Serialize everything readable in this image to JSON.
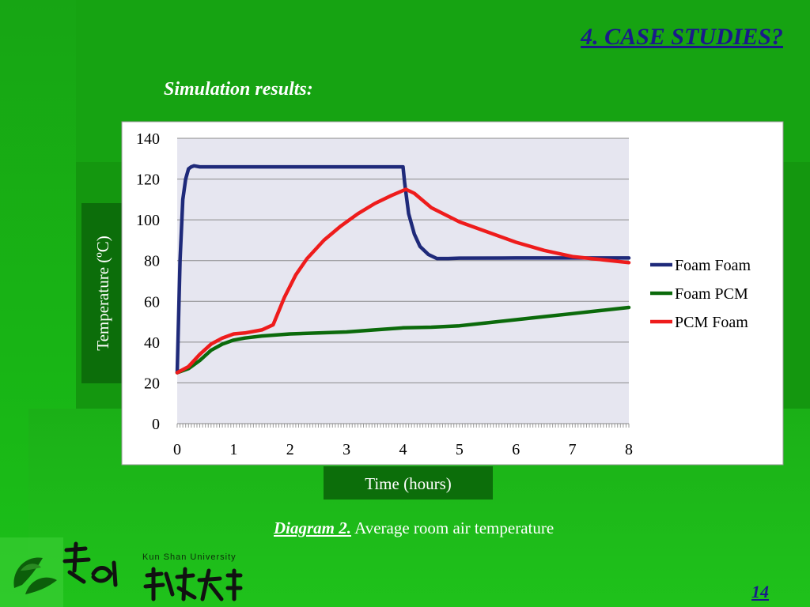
{
  "slide": {
    "title": "4. CASE STUDIES?",
    "subtitle": "Simulation results:",
    "caption_lead": "Diagram 2.",
    "caption_text": " Average room air temperature",
    "university_name": "Kun Shan University",
    "page_number": "14",
    "colors": {
      "background": "#16a312",
      "title": "#1a1a8a",
      "label_box": "#0c6e0a"
    }
  },
  "chart_data": {
    "type": "line",
    "title": "",
    "xlabel": "Time (hours)",
    "ylabel": "Temperature (ºC)",
    "xlim": [
      0,
      8
    ],
    "ylim": [
      0,
      140
    ],
    "xticks": [
      0,
      1,
      2,
      3,
      4,
      5,
      6,
      7,
      8
    ],
    "yticks": [
      0,
      20,
      40,
      60,
      80,
      100,
      120,
      140
    ],
    "grid": true,
    "legend_position": "right",
    "series": [
      {
        "name": "Foam Foam",
        "color": "#1f2a7a",
        "x": [
          0,
          0.05,
          0.1,
          0.15,
          0.2,
          0.25,
          0.3,
          0.4,
          1,
          2,
          3,
          4,
          4.03,
          4.1,
          4.2,
          4.3,
          4.45,
          4.6,
          4.8,
          5,
          6,
          7,
          8
        ],
        "y": [
          25,
          80,
          110,
          120,
          125,
          126,
          126.5,
          126,
          126,
          126,
          126,
          126,
          118,
          103,
          93,
          87,
          83,
          81,
          81,
          81.2,
          81.3,
          81.3,
          81.3
        ]
      },
      {
        "name": "Foam PCM",
        "color": "#0b6a0b",
        "x": [
          0,
          0.2,
          0.4,
          0.6,
          0.8,
          1,
          1.2,
          1.5,
          2,
          2.5,
          3,
          3.5,
          4,
          4.5,
          5,
          5.5,
          6,
          6.5,
          7,
          7.5,
          8
        ],
        "y": [
          25,
          27,
          31,
          36,
          39,
          41,
          42,
          43,
          44,
          44.5,
          45,
          46,
          47,
          47.3,
          48,
          49.5,
          51,
          52.5,
          54,
          55.5,
          57
        ]
      },
      {
        "name": "PCM Foam",
        "color": "#ee1c1c",
        "x": [
          0,
          0.2,
          0.4,
          0.6,
          0.8,
          1,
          1.2,
          1.5,
          1.7,
          1.9,
          2.1,
          2.3,
          2.6,
          2.9,
          3.2,
          3.5,
          3.8,
          4.05,
          4.2,
          4.5,
          5,
          5.5,
          6,
          6.5,
          7,
          7.5,
          8
        ],
        "y": [
          25,
          28,
          34,
          39,
          42,
          44,
          44.5,
          46,
          48.5,
          62,
          73,
          81,
          90,
          97,
          103,
          108,
          112,
          115,
          113,
          106,
          99,
          94,
          89,
          85,
          82,
          80.5,
          79
        ]
      }
    ]
  }
}
